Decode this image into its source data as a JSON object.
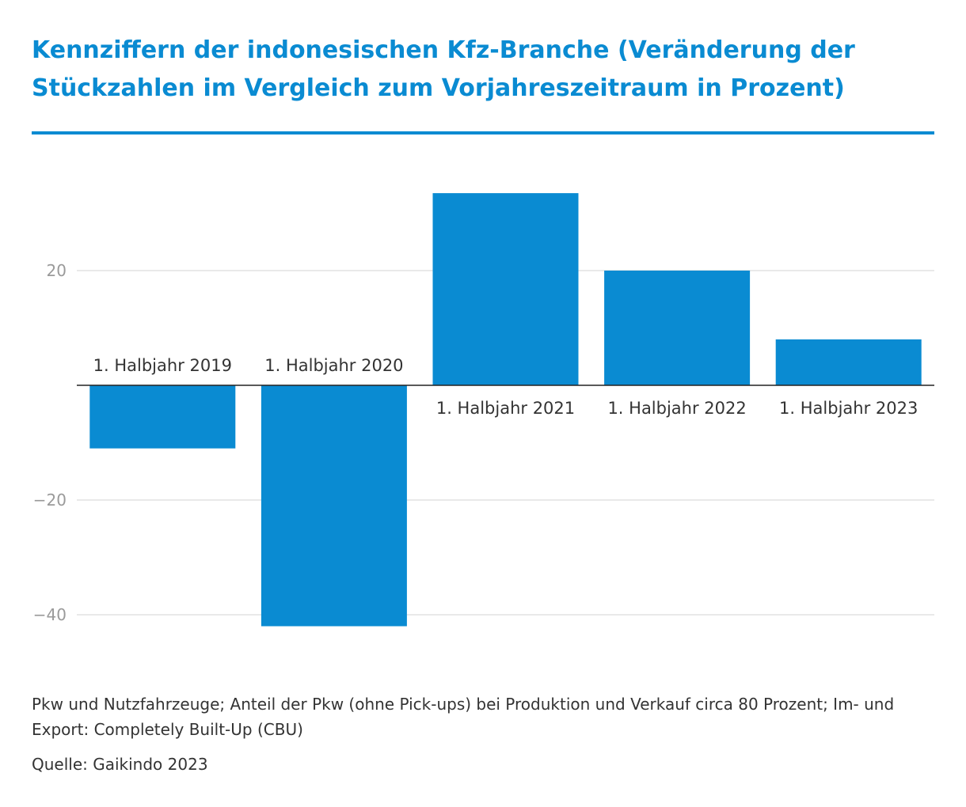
{
  "chart_data": {
    "type": "bar",
    "title": "Kennziffern der indonesischen Kfz-Branche (Veränderung der Stückzahlen im Vergleich zum Vorjahreszeitraum in Prozent)",
    "xlabel": "",
    "ylabel": "",
    "categories": [
      "1. Halbjahr 2019",
      "1. Halbjahr 2020",
      "1. Halbjahr 2021",
      "1. Halbjahr 2022",
      "1. Halbjahr 2023"
    ],
    "values": [
      -11,
      -42,
      33.5,
      20,
      8
    ],
    "ylim": [
      -42,
      35
    ],
    "yticks": [
      20,
      -20,
      -40
    ],
    "ytick_labels": [
      "20",
      "−20",
      "−40"
    ],
    "grid": true,
    "legend": "none",
    "colors": {
      "bar": "#0a8bd2",
      "title": "#0a8bd2",
      "grid": "#e2e2e2",
      "axis": "#222222",
      "tick_label": "#9a9a9a",
      "text": "#333333"
    }
  },
  "footer": {
    "note": "Pkw und Nutzfahrzeuge; Anteil der Pkw (ohne Pick-ups) bei Produktion und Verkauf circa 80 Prozent; Im- und Export: Completely Built-Up (CBU)",
    "source": "Quelle: Gaikindo 2023"
  }
}
